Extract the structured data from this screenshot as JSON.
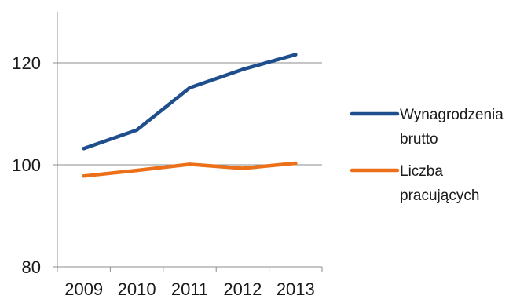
{
  "chart_data": {
    "type": "line",
    "title": "",
    "xlabel": "",
    "ylabel": "",
    "x": [
      "2009",
      "2010",
      "2011",
      "2012",
      "2013"
    ],
    "ylim": [
      80,
      130
    ],
    "yticks": [
      80,
      100,
      120
    ],
    "grid": "horizontal",
    "legend_position": "right",
    "series": [
      {
        "name": "Wynagrodzenia brutto",
        "legend_lines": [
          "Wynagrodzenia",
          "brutto"
        ],
        "color": "#1f4e8c",
        "values": [
          103.2,
          106.8,
          115.1,
          118.7,
          121.6
        ]
      },
      {
        "name": "Liczba pracujących",
        "legend_lines": [
          "Liczba",
          "pracujących"
        ],
        "color": "#ec7019",
        "values": [
          97.8,
          98.9,
          100.1,
          99.3,
          100.3
        ]
      }
    ]
  }
}
